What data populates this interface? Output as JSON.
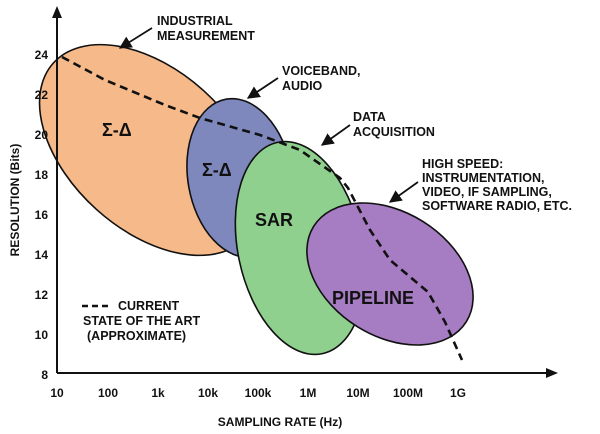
{
  "diagram": {
    "y_axis": {
      "label": "RESOLUTION (Bits)",
      "ticks": [
        "8",
        "10",
        "12",
        "14",
        "16",
        "18",
        "20",
        "22",
        "24"
      ]
    },
    "x_axis": {
      "label": "SAMPLING RATE (Hz)",
      "ticks": [
        "10",
        "100",
        "1k",
        "10k",
        "100k",
        "1M",
        "10M",
        "100M",
        "1G"
      ]
    },
    "regions": [
      {
        "id": "sigma-delta-industrial",
        "label": "Σ-Δ",
        "color": "#f6ba8a"
      },
      {
        "id": "sigma-delta-voiceband",
        "label": "Σ-Δ",
        "color": "#7e88bd"
      },
      {
        "id": "sar",
        "label": "SAR",
        "color": "#8fd08f"
      },
      {
        "id": "pipeline",
        "label": "PIPELINE",
        "color": "#a67cc2"
      }
    ],
    "callouts": [
      {
        "id": "industrial",
        "lines": [
          "INDUSTRIAL",
          "MEASUREMENT"
        ]
      },
      {
        "id": "voiceband",
        "lines": [
          "VOICEBAND,",
          "AUDIO"
        ]
      },
      {
        "id": "data-acquisition",
        "lines": [
          "DATA",
          "ACQUISITION"
        ]
      },
      {
        "id": "high-speed",
        "lines": [
          "HIGH SPEED:",
          "INSTRUMENTATION,",
          "VIDEO, IF SAMPLING,",
          "SOFTWARE RADIO, ETC."
        ]
      }
    ],
    "legend": {
      "lines": [
        "CURRENT",
        "STATE OF THE ART",
        "(APPROXIMATE)"
      ]
    }
  }
}
